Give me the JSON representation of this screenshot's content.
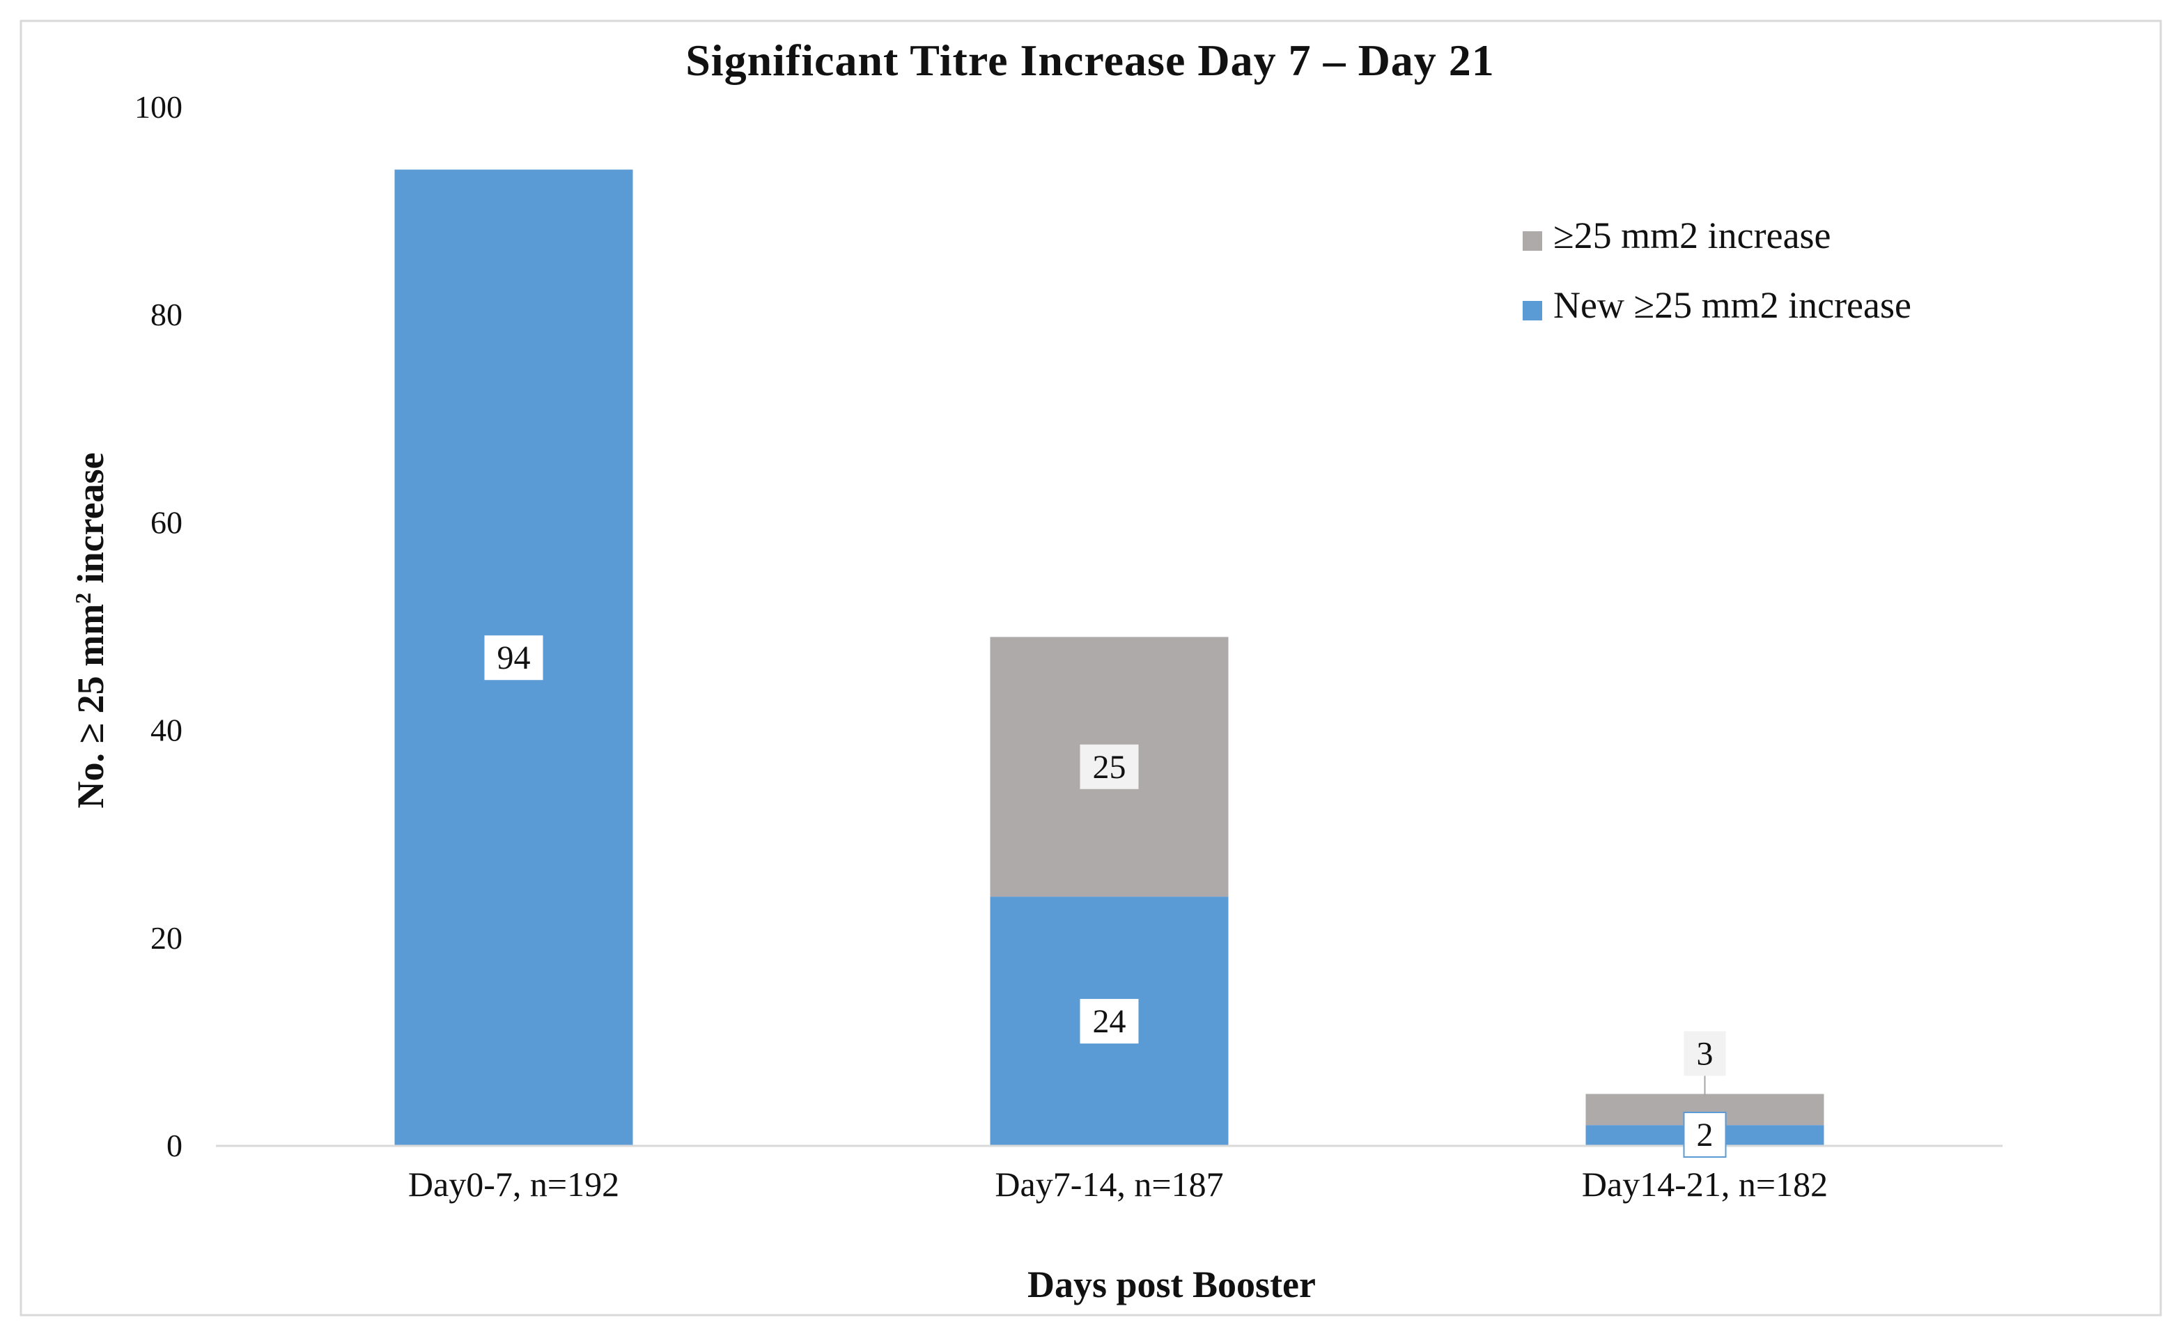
{
  "chart_data": {
    "type": "bar",
    "stacked": true,
    "title": "Significant Titre Increase  Day 7 – Day 21",
    "xlabel": "Days post Booster",
    "ylabel_main": "No. ≥ 25 mm",
    "ylabel_sup": "2",
    "ylabel_rest": " increase",
    "ylim": [
      0,
      100
    ],
    "yticks": [
      "0",
      "20",
      "40",
      "60",
      "80",
      "100"
    ],
    "ytick_values": [
      0,
      20,
      40,
      60,
      80,
      100
    ],
    "categories": [
      "Day0-7, n=192",
      "Day7-14, n=187",
      "Day14-21, n=182"
    ],
    "series": [
      {
        "name": "New ≥25 mm2 increase",
        "color": "#5b9bd5",
        "values": [
          94,
          24,
          2
        ],
        "labels": [
          "94",
          "24",
          "2"
        ]
      },
      {
        "name": "≥25 mm2 increase",
        "color": "#aeaaaa",
        "values": [
          0,
          25,
          3
        ],
        "labels": [
          "",
          "25",
          "3"
        ]
      }
    ],
    "legend_order": [
      1,
      0
    ],
    "legend_position": "top-right",
    "grid": false
  }
}
